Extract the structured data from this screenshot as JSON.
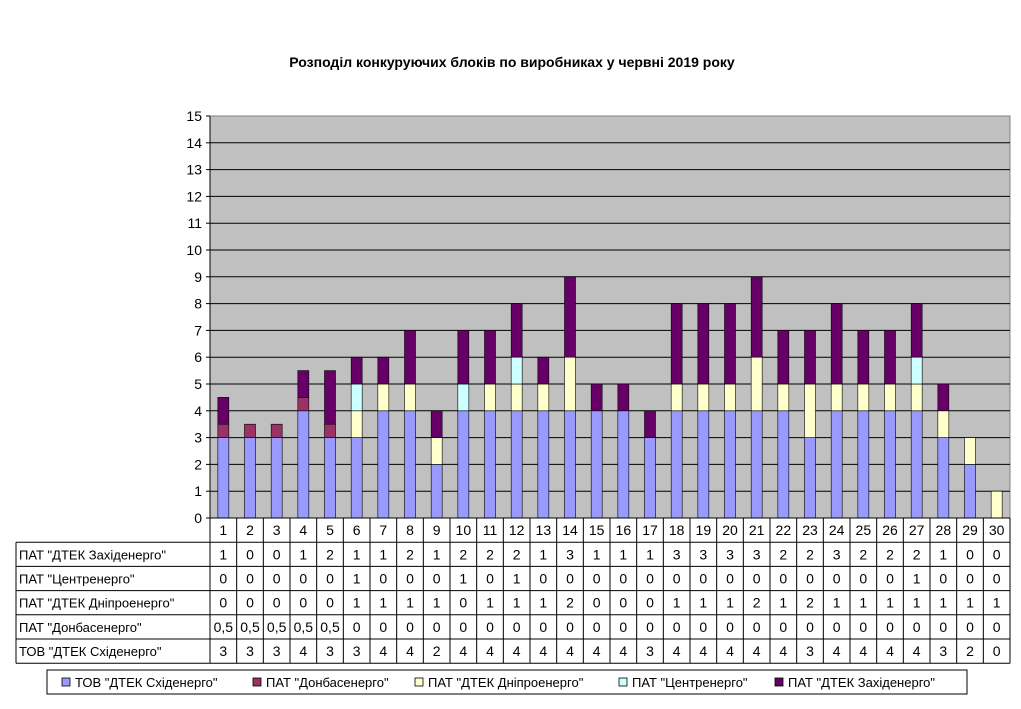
{
  "chart_data": {
    "type": "bar",
    "stacked": true,
    "title": "Розподіл конкуруючих блоків по виробниках у червні  2019 року",
    "categories": [
      "1",
      "2",
      "3",
      "4",
      "5",
      "6",
      "7",
      "8",
      "9",
      "10",
      "11",
      "12",
      "13",
      "14",
      "15",
      "16",
      "17",
      "18",
      "19",
      "20",
      "21",
      "22",
      "23",
      "24",
      "25",
      "26",
      "27",
      "28",
      "29",
      "30"
    ],
    "ylim": [
      0,
      15
    ],
    "yticks": [
      "0",
      "1",
      "2",
      "3",
      "4",
      "5",
      "6",
      "7",
      "8",
      "9",
      "10",
      "11",
      "12",
      "13",
      "14",
      "15"
    ],
    "grid": true,
    "legend_position": "bottom",
    "series": [
      {
        "name": "ТОВ \"ДТЕК Східенерго\"",
        "color": "#9999ff",
        "values": [
          3,
          3,
          3,
          4,
          3,
          3,
          4,
          4,
          2,
          4,
          4,
          4,
          4,
          4,
          4,
          4,
          3,
          4,
          4,
          4,
          4,
          4,
          3,
          4,
          4,
          4,
          4,
          3,
          2,
          0
        ],
        "labels": [
          "3",
          "3",
          "3",
          "4",
          "3",
          "3",
          "4",
          "4",
          "2",
          "4",
          "4",
          "4",
          "4",
          "4",
          "4",
          "4",
          "3",
          "4",
          "4",
          "4",
          "4",
          "4",
          "3",
          "4",
          "4",
          "4",
          "4",
          "3",
          "2",
          "0"
        ]
      },
      {
        "name": "ПАТ  \"Донбасенерго\"",
        "color": "#993366",
        "values": [
          0.5,
          0.5,
          0.5,
          0.5,
          0.5,
          0,
          0,
          0,
          0,
          0,
          0,
          0,
          0,
          0,
          0,
          0,
          0,
          0,
          0,
          0,
          0,
          0,
          0,
          0,
          0,
          0,
          0,
          0,
          0,
          0
        ],
        "labels": [
          "0,5",
          "0,5",
          "0,5",
          "0,5",
          "0,5",
          "0",
          "0",
          "0",
          "0",
          "0",
          "0",
          "0",
          "0",
          "0",
          "0",
          "0",
          "0",
          "0",
          "0",
          "0",
          "0",
          "0",
          "0",
          "0",
          "0",
          "0",
          "0",
          "0",
          "0",
          "0"
        ]
      },
      {
        "name": "ПАТ  \"ДТЕК Дніпроенерго\"",
        "color": "#ffffcc",
        "values": [
          0,
          0,
          0,
          0,
          0,
          1,
          1,
          1,
          1,
          0,
          1,
          1,
          1,
          2,
          0,
          0,
          0,
          1,
          1,
          1,
          2,
          1,
          2,
          1,
          1,
          1,
          1,
          1,
          1,
          1
        ],
        "labels": [
          "0",
          "0",
          "0",
          "0",
          "0",
          "1",
          "1",
          "1",
          "1",
          "0",
          "1",
          "1",
          "1",
          "2",
          "0",
          "0",
          "0",
          "1",
          "1",
          "1",
          "2",
          "1",
          "2",
          "1",
          "1",
          "1",
          "1",
          "1",
          "1",
          "1"
        ]
      },
      {
        "name": "ПАТ  \"Центренерго\"",
        "color": "#ccffff",
        "values": [
          0,
          0,
          0,
          0,
          0,
          1,
          0,
          0,
          0,
          1,
          0,
          1,
          0,
          0,
          0,
          0,
          0,
          0,
          0,
          0,
          0,
          0,
          0,
          0,
          0,
          0,
          1,
          0,
          0,
          0
        ],
        "labels": [
          "0",
          "0",
          "0",
          "0",
          "0",
          "1",
          "0",
          "0",
          "0",
          "1",
          "0",
          "1",
          "0",
          "0",
          "0",
          "0",
          "0",
          "0",
          "0",
          "0",
          "0",
          "0",
          "0",
          "0",
          "0",
          "0",
          "1",
          "0",
          "0",
          "0"
        ]
      },
      {
        "name": "ПАТ  \"ДТЕК Західенерго\"",
        "color": "#660066",
        "values": [
          1,
          0,
          0,
          1,
          2,
          1,
          1,
          2,
          1,
          2,
          2,
          2,
          1,
          3,
          1,
          1,
          1,
          3,
          3,
          3,
          3,
          2,
          2,
          3,
          2,
          2,
          2,
          1,
          0,
          0
        ],
        "labels": [
          "1",
          "0",
          "0",
          "1",
          "2",
          "1",
          "1",
          "2",
          "1",
          "2",
          "2",
          "2",
          "1",
          "3",
          "1",
          "1",
          "1",
          "3",
          "3",
          "3",
          "3",
          "2",
          "2",
          "3",
          "2",
          "2",
          "2",
          "1",
          "0",
          "0"
        ]
      }
    ],
    "table_rows": [
      {
        "label": "ПАТ \"ДТЕК Західенерго\"",
        "series": 4
      },
      {
        "label": "ПАТ \"Центренерго\"",
        "series": 3
      },
      {
        "label": "ПАТ \"ДТЕК Дніпроенерго\"",
        "series": 2
      },
      {
        "label": "ПАТ \"Донбасенерго\"",
        "series": 1
      },
      {
        "label": "ТОВ \"ДТЕК Східенерго\"",
        "series": 0
      }
    ]
  }
}
